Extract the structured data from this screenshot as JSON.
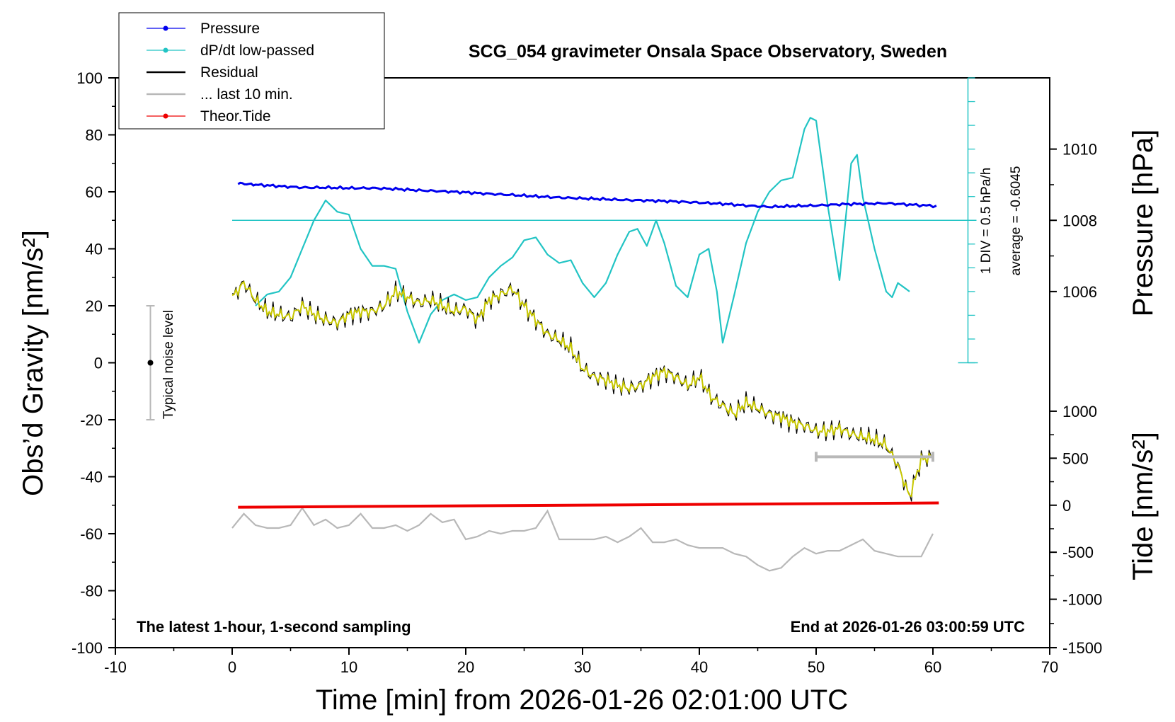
{
  "chart_data": {
    "type": "line",
    "title": "SCG_054 gravimeter Onsala Space Observatory, Sweden",
    "xlabel": "Time [min] from 2026-01-26 02:01:00 UTC",
    "ylabel_left": "Obs’d Gravity [nm/s²]",
    "ylabel_right_top": "Pressure [hPa]",
    "ylabel_right_bottom": "Tide [nm/s²]",
    "xlim": [
      -10,
      70
    ],
    "ylim": [
      -100,
      100
    ],
    "x_ticks": [
      "-10",
      "0",
      "10",
      "20",
      "30",
      "40",
      "50",
      "60",
      "70"
    ],
    "y_ticks": [
      "100",
      "80",
      "60",
      "40",
      "20",
      "0",
      "-20",
      "-40",
      "-60",
      "-80",
      "-100"
    ],
    "pressure_axis": {
      "ticks": [
        "1010",
        "1008",
        "1006"
      ],
      "tick_values": [
        1010,
        1008,
        1006
      ],
      "maps_to_gravity": [
        75,
        50,
        25
      ]
    },
    "tide_axis": {
      "ticks": [
        "1000",
        "500",
        "0",
        "-500",
        "-1000",
        "-1500"
      ],
      "tick_values": [
        1000,
        500,
        0,
        -500,
        -1000,
        -1500
      ],
      "maps_to_gravity": [
        -17,
        -33.5,
        -50,
        -66.5,
        -83,
        -100
      ]
    },
    "legend": [
      {
        "name": "Pressure",
        "color": "#0000ee",
        "marker": true
      },
      {
        "name": "dP/dt low-passed",
        "color": "#22c4c4",
        "marker": true
      },
      {
        "name": "Residual",
        "color": "#000000",
        "marker": false
      },
      {
        "name": "... last 10 min.",
        "color": "#b8b8b8",
        "marker": false
      },
      {
        "name": "Theor.Tide",
        "color": "#ee0000",
        "marker": true
      }
    ],
    "annotations": {
      "bottom_left": "The latest 1-hour, 1-second sampling",
      "bottom_right": "End at 2026-01-26 03:00:59 UTC",
      "noise_label": "Typical noise level",
      "dpdt_scale": "1 DIV = 0.5 hPa/h",
      "dpdt_average": "average = -0.6045"
    },
    "noise_bar": {
      "x": -7,
      "y_low": -20,
      "y_high": 20,
      "y_center": 0
    },
    "dpdt_axis": {
      "x": 63,
      "y_low": 0,
      "y_high": 100,
      "baseline": 50
    },
    "last10_range": {
      "x_start": 50,
      "x_end": 60,
      "y": -33
    },
    "series": [
      {
        "name": "Pressure",
        "color": "#0000ee",
        "x": [
          0.5,
          2,
          4,
          6,
          8,
          10,
          12,
          14,
          16,
          18,
          20,
          22,
          24,
          26,
          28,
          30,
          32,
          34,
          36,
          38,
          40,
          42,
          44,
          46,
          48,
          50,
          52,
          54,
          56,
          58,
          60.3
        ],
        "y": [
          63,
          62.5,
          62,
          61.5,
          61.5,
          61.3,
          61.3,
          61,
          60.5,
          60.2,
          59.8,
          59.3,
          58.9,
          58.4,
          58,
          57.7,
          57.4,
          57.1,
          56.9,
          56.6,
          56.2,
          55.8,
          55.2,
          54.7,
          55,
          55.2,
          55.6,
          55.8,
          56,
          55.5,
          55
        ]
      },
      {
        "name": "dP/dt low-passed",
        "color": "#22c4c4",
        "x": [
          2,
          3,
          4,
          5,
          6,
          7,
          8,
          9,
          10,
          11,
          12,
          13,
          14,
          15,
          16,
          17,
          18,
          19,
          20,
          21,
          22,
          23,
          24,
          25,
          26,
          27,
          28,
          29,
          30,
          31,
          32,
          33,
          34,
          34.7,
          35.5,
          36.3,
          37,
          38,
          39,
          40,
          40.8,
          41.5,
          42,
          43,
          44,
          45,
          46,
          47,
          48,
          49,
          49.5,
          50,
          50.5,
          51,
          52,
          53,
          53.5,
          54,
          55,
          56,
          56.5,
          57,
          58
        ],
        "y": [
          20,
          24,
          25,
          30,
          40,
          50,
          57,
          53,
          52,
          40,
          34,
          34,
          33,
          18,
          7,
          17,
          22,
          24,
          22,
          23,
          30,
          34,
          37,
          43,
          44,
          38,
          35,
          36,
          28,
          23,
          28,
          38,
          46,
          47,
          41,
          50,
          42,
          27,
          23,
          38,
          40,
          25,
          7,
          24,
          42,
          53,
          60,
          64,
          65,
          82,
          86,
          85,
          70,
          55,
          29,
          70,
          73,
          58,
          40,
          25,
          23,
          28,
          25
        ]
      },
      {
        "name": "Residual",
        "color": "#000000",
        "x": [
          0,
          1,
          2,
          3,
          4,
          5,
          6,
          7,
          8,
          9,
          10,
          11,
          12,
          13,
          14,
          15,
          16,
          17,
          18,
          19,
          20,
          21,
          22,
          23,
          24,
          25,
          26,
          27,
          28,
          29,
          30,
          31,
          32,
          33,
          34,
          35,
          36,
          37,
          38,
          39,
          40,
          41,
          42,
          43,
          44,
          45,
          46,
          47,
          48,
          49,
          50,
          51,
          52,
          53,
          54,
          55,
          56,
          57,
          58,
          59,
          60
        ],
        "y": [
          23,
          28,
          22,
          18,
          17,
          16,
          20,
          17,
          15,
          14,
          17,
          18,
          18,
          20,
          25,
          23,
          21,
          22,
          20,
          18,
          19,
          15,
          22,
          24,
          26,
          20,
          15,
          10,
          8,
          5,
          -2,
          -5,
          -6,
          -8,
          -9,
          -8,
          -5,
          -3,
          -5,
          -8,
          -5,
          -12,
          -15,
          -18,
          -14,
          -16,
          -18,
          -19,
          -21,
          -22,
          -24,
          -24,
          -23,
          -25,
          -26,
          -27,
          -29,
          -36,
          -47,
          -34,
          -33
        ]
      },
      {
        "name": "... last 10 min.",
        "color": "#b8b8b8",
        "x": [
          0,
          1,
          2,
          3,
          4,
          5,
          6,
          7,
          8,
          9,
          10,
          11,
          12,
          13,
          14,
          15,
          16,
          17,
          18,
          19,
          20,
          21,
          22,
          23,
          24,
          25,
          26,
          27,
          28,
          29,
          30,
          31,
          32,
          33,
          34,
          35,
          36,
          37,
          38,
          39,
          40,
          41,
          42,
          43,
          44,
          45,
          46,
          47,
          48,
          49,
          50,
          51,
          52,
          53,
          54,
          55,
          56,
          57,
          58,
          59,
          60
        ],
        "y": [
          -58,
          -53,
          -57,
          -58,
          -58,
          -57,
          -51,
          -57,
          -55,
          -58,
          -57,
          -53,
          -58,
          -58,
          -57,
          -59,
          -57,
          -53,
          -56,
          -55,
          -62,
          -61,
          -59,
          -60,
          -59,
          -59,
          -58,
          -52,
          -62,
          -62,
          -62,
          -62,
          -61,
          -63,
          -61,
          -58,
          -63,
          -63,
          -62,
          -64,
          -65,
          -65,
          -65,
          -67,
          -68,
          -71,
          -73,
          -72,
          -68,
          -65,
          -67,
          -66,
          -66,
          -64,
          -62,
          -66,
          -67,
          -68,
          -68,
          -68,
          -60
        ]
      },
      {
        "name": "Theor.Tide",
        "color": "#ee0000",
        "x": [
          0.5,
          60.5
        ],
        "y": [
          -50.7,
          -49.2
        ]
      }
    ]
  }
}
